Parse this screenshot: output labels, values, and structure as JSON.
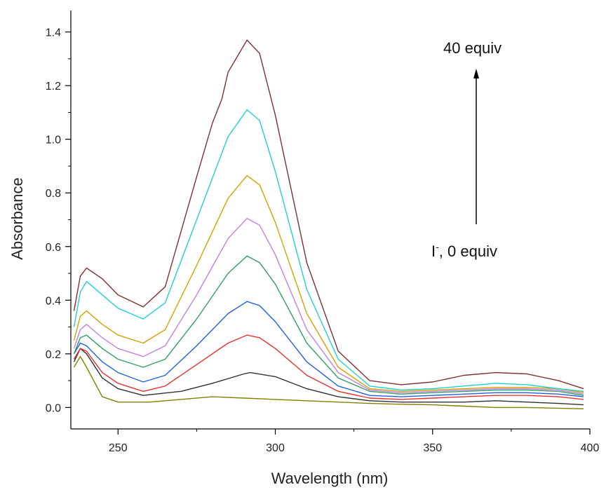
{
  "chart_data": {
    "type": "line",
    "title": "",
    "xlabel": "Wavelength (nm)",
    "ylabel": "Absorbance",
    "xlim": [
      235,
      400
    ],
    "ylim": [
      -0.08,
      1.48
    ],
    "x_ticks": [
      250,
      300,
      350,
      400
    ],
    "y_ticks": [
      0.0,
      0.2,
      0.4,
      0.6,
      0.8,
      1.0,
      1.2,
      1.4
    ],
    "x_tick_labels": [
      "250",
      "300",
      "350",
      "400"
    ],
    "y_tick_labels": [
      "0.0",
      "0.2",
      "0.4",
      "0.6",
      "0.8",
      "1.0",
      "1.2",
      "1.4"
    ],
    "grid": false,
    "legend": "none",
    "annotations": {
      "top": "40 equiv",
      "bottom_ion": "I",
      "bottom_sup": "-",
      "bottom_rest": ", 0 equiv"
    },
    "series": [
      {
        "color": "#808000",
        "points": [
          [
            236,
            0.15
          ],
          [
            238,
            0.19
          ],
          [
            240,
            0.15
          ],
          [
            245,
            0.04
          ],
          [
            250,
            0.02
          ],
          [
            260,
            0.02
          ],
          [
            270,
            0.03
          ],
          [
            280,
            0.04
          ],
          [
            290,
            0.035
          ],
          [
            300,
            0.03
          ],
          [
            310,
            0.025
          ],
          [
            320,
            0.02
          ],
          [
            330,
            0.015
          ],
          [
            340,
            0.012
          ],
          [
            350,
            0.01
          ],
          [
            360,
            0.005
          ],
          [
            370,
            0.0
          ],
          [
            380,
            0.0
          ],
          [
            398,
            -0.005
          ]
        ]
      },
      {
        "color": "#303030",
        "points": [
          [
            236,
            0.17
          ],
          [
            238,
            0.22
          ],
          [
            240,
            0.2
          ],
          [
            245,
            0.11
          ],
          [
            250,
            0.07
          ],
          [
            258,
            0.045
          ],
          [
            270,
            0.06
          ],
          [
            280,
            0.09
          ],
          [
            290,
            0.125
          ],
          [
            292,
            0.13
          ],
          [
            300,
            0.115
          ],
          [
            310,
            0.07
          ],
          [
            320,
            0.04
          ],
          [
            330,
            0.025
          ],
          [
            340,
            0.02
          ],
          [
            350,
            0.02
          ],
          [
            360,
            0.02
          ],
          [
            370,
            0.025
          ],
          [
            380,
            0.02
          ],
          [
            390,
            0.015
          ],
          [
            398,
            0.01
          ]
        ]
      },
      {
        "color": "#e83030",
        "points": [
          [
            236,
            0.18
          ],
          [
            238,
            0.22
          ],
          [
            240,
            0.21
          ],
          [
            245,
            0.13
          ],
          [
            250,
            0.09
          ],
          [
            258,
            0.06
          ],
          [
            265,
            0.08
          ],
          [
            275,
            0.16
          ],
          [
            285,
            0.24
          ],
          [
            291,
            0.27
          ],
          [
            295,
            0.26
          ],
          [
            300,
            0.22
          ],
          [
            310,
            0.12
          ],
          [
            320,
            0.06
          ],
          [
            330,
            0.035
          ],
          [
            340,
            0.03
          ],
          [
            350,
            0.035
          ],
          [
            360,
            0.04
          ],
          [
            370,
            0.045
          ],
          [
            380,
            0.045
          ],
          [
            390,
            0.04
          ],
          [
            398,
            0.03
          ]
        ]
      },
      {
        "color": "#2060e0",
        "points": [
          [
            236,
            0.2
          ],
          [
            238,
            0.24
          ],
          [
            240,
            0.23
          ],
          [
            245,
            0.17
          ],
          [
            250,
            0.13
          ],
          [
            258,
            0.095
          ],
          [
            265,
            0.12
          ],
          [
            275,
            0.23
          ],
          [
            285,
            0.35
          ],
          [
            291,
            0.395
          ],
          [
            295,
            0.38
          ],
          [
            300,
            0.32
          ],
          [
            310,
            0.17
          ],
          [
            320,
            0.08
          ],
          [
            330,
            0.045
          ],
          [
            340,
            0.04
          ],
          [
            350,
            0.045
          ],
          [
            360,
            0.05
          ],
          [
            370,
            0.055
          ],
          [
            380,
            0.055
          ],
          [
            390,
            0.05
          ],
          [
            398,
            0.04
          ]
        ]
      },
      {
        "color": "#30a060",
        "points": [
          [
            236,
            0.2
          ],
          [
            238,
            0.26
          ],
          [
            240,
            0.27
          ],
          [
            245,
            0.22
          ],
          [
            250,
            0.18
          ],
          [
            258,
            0.15
          ],
          [
            265,
            0.18
          ],
          [
            275,
            0.33
          ],
          [
            285,
            0.5
          ],
          [
            291,
            0.565
          ],
          [
            295,
            0.54
          ],
          [
            300,
            0.46
          ],
          [
            310,
            0.24
          ],
          [
            320,
            0.11
          ],
          [
            330,
            0.06
          ],
          [
            340,
            0.05
          ],
          [
            350,
            0.055
          ],
          [
            360,
            0.06
          ],
          [
            370,
            0.065
          ],
          [
            380,
            0.065
          ],
          [
            390,
            0.06
          ],
          [
            398,
            0.045
          ]
        ]
      },
      {
        "color": "#c080e8",
        "points": [
          [
            236,
            0.22
          ],
          [
            238,
            0.29
          ],
          [
            240,
            0.31
          ],
          [
            245,
            0.26
          ],
          [
            250,
            0.22
          ],
          [
            258,
            0.19
          ],
          [
            265,
            0.23
          ],
          [
            275,
            0.42
          ],
          [
            285,
            0.63
          ],
          [
            291,
            0.705
          ],
          [
            295,
            0.68
          ],
          [
            300,
            0.57
          ],
          [
            310,
            0.29
          ],
          [
            320,
            0.13
          ],
          [
            330,
            0.065
          ],
          [
            340,
            0.055
          ],
          [
            350,
            0.06
          ],
          [
            360,
            0.065
          ],
          [
            370,
            0.07
          ],
          [
            380,
            0.07
          ],
          [
            390,
            0.065
          ],
          [
            398,
            0.05
          ]
        ]
      },
      {
        "color": "#d8a000",
        "points": [
          [
            236,
            0.25
          ],
          [
            238,
            0.34
          ],
          [
            240,
            0.36
          ],
          [
            245,
            0.31
          ],
          [
            250,
            0.27
          ],
          [
            258,
            0.24
          ],
          [
            265,
            0.29
          ],
          [
            275,
            0.53
          ],
          [
            285,
            0.78
          ],
          [
            291,
            0.865
          ],
          [
            295,
            0.83
          ],
          [
            300,
            0.69
          ],
          [
            310,
            0.35
          ],
          [
            320,
            0.15
          ],
          [
            330,
            0.07
          ],
          [
            340,
            0.06
          ],
          [
            350,
            0.065
          ],
          [
            360,
            0.07
          ],
          [
            370,
            0.075
          ],
          [
            380,
            0.075
          ],
          [
            390,
            0.07
          ],
          [
            398,
            0.055
          ]
        ]
      },
      {
        "color": "#20d0d0",
        "points": [
          [
            236,
            0.3
          ],
          [
            238,
            0.43
          ],
          [
            240,
            0.47
          ],
          [
            245,
            0.42
          ],
          [
            250,
            0.37
          ],
          [
            258,
            0.33
          ],
          [
            265,
            0.39
          ],
          [
            275,
            0.7
          ],
          [
            285,
            1.01
          ],
          [
            291,
            1.11
          ],
          [
            295,
            1.07
          ],
          [
            300,
            0.88
          ],
          [
            310,
            0.44
          ],
          [
            320,
            0.18
          ],
          [
            330,
            0.08
          ],
          [
            340,
            0.065
          ],
          [
            350,
            0.07
          ],
          [
            360,
            0.08
          ],
          [
            370,
            0.09
          ],
          [
            380,
            0.085
          ],
          [
            390,
            0.07
          ],
          [
            398,
            0.06
          ]
        ]
      },
      {
        "color": "#803030",
        "points": [
          [
            236,
            0.36
          ],
          [
            238,
            0.49
          ],
          [
            240,
            0.52
          ],
          [
            245,
            0.48
          ],
          [
            250,
            0.42
          ],
          [
            258,
            0.375
          ],
          [
            265,
            0.45
          ],
          [
            275,
            0.86
          ],
          [
            280,
            1.06
          ],
          [
            283,
            1.15
          ],
          [
            285,
            1.25
          ],
          [
            291,
            1.37
          ],
          [
            295,
            1.32
          ],
          [
            300,
            1.09
          ],
          [
            310,
            0.54
          ],
          [
            320,
            0.21
          ],
          [
            330,
            0.1
          ],
          [
            340,
            0.085
          ],
          [
            350,
            0.095
          ],
          [
            360,
            0.12
          ],
          [
            370,
            0.13
          ],
          [
            380,
            0.125
          ],
          [
            390,
            0.1
          ],
          [
            398,
            0.07
          ]
        ]
      }
    ]
  }
}
